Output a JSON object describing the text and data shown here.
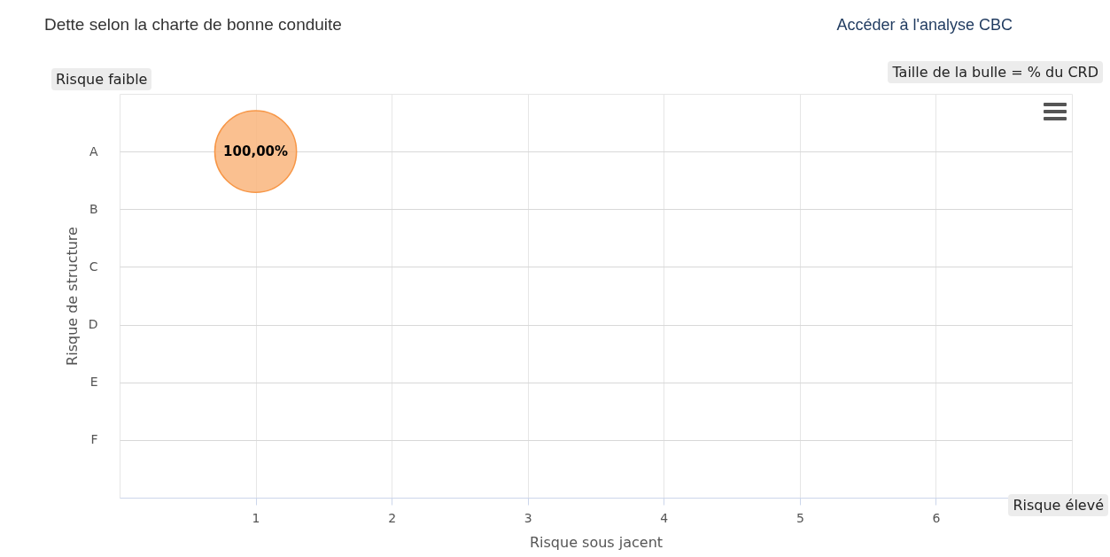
{
  "chart_data": {
    "type": "bubble",
    "orientation": "horizontal",
    "title": "Dette selon la charte de bonne conduite",
    "xlabel": "Risque sous jacent",
    "ylabel": "Risque de structure",
    "categories": [
      "A",
      "B",
      "C",
      "D",
      "E",
      "F"
    ],
    "values": [
      1,
      null,
      null,
      null,
      null,
      null
    ],
    "sizes": [
      1,
      null,
      null,
      null,
      null,
      null
    ],
    "value_labels": [
      "100,00%",
      null,
      null,
      null,
      null,
      null
    ],
    "color": "#f9b57c",
    "xlim": [
      0,
      7
    ],
    "xticks": [
      1,
      2,
      3,
      4,
      5,
      6
    ],
    "grid": true,
    "annotations": [
      "Risque faible",
      "Risque élevé",
      "Taille de la bulle = % du CRD",
      "Accéder à l'analyse CBC"
    ]
  }
}
